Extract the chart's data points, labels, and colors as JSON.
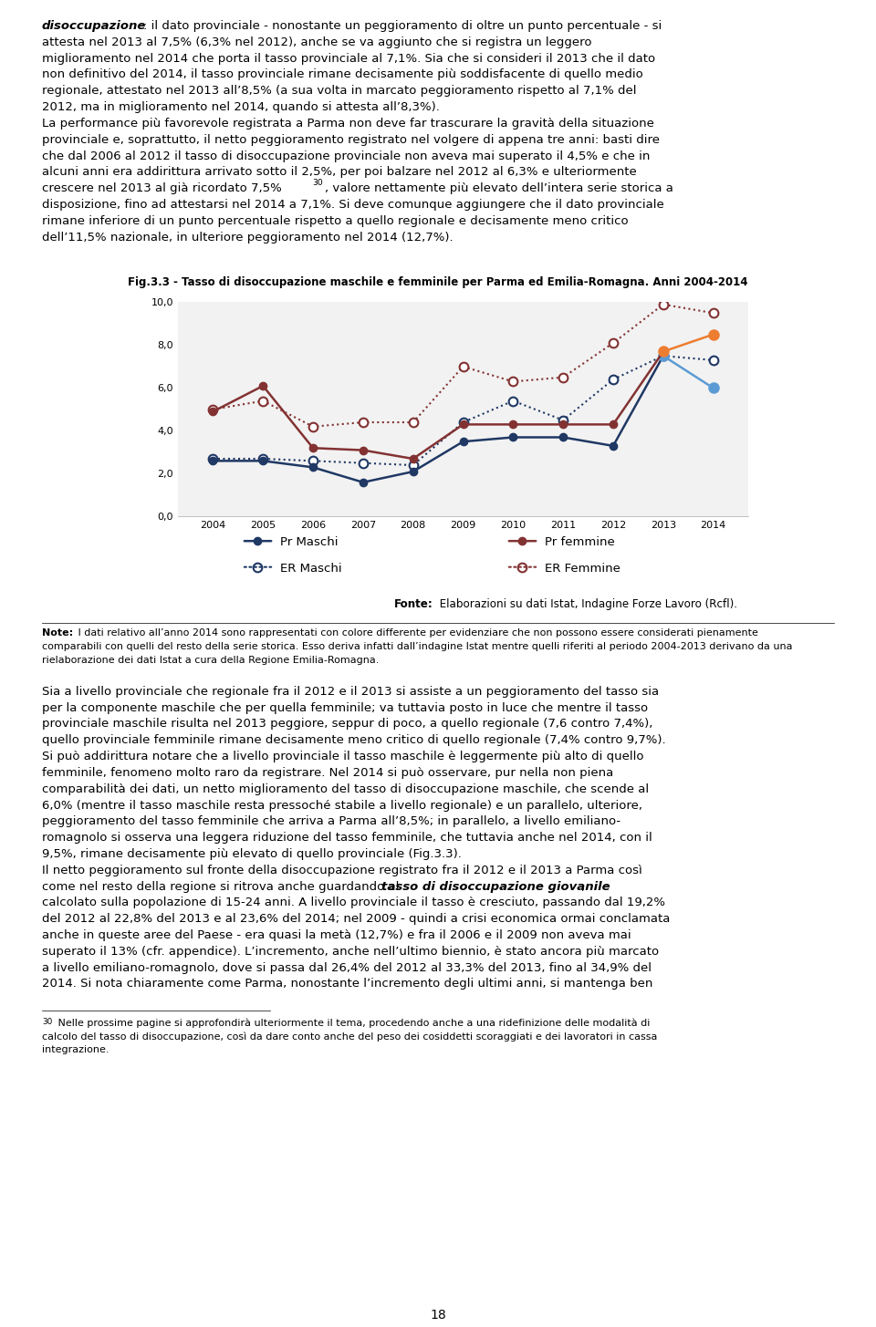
{
  "years": [
    2004,
    2005,
    2006,
    2007,
    2008,
    2009,
    2010,
    2011,
    2012,
    2013,
    2014
  ],
  "pr_maschi": [
    2.6,
    2.6,
    2.3,
    1.6,
    2.1,
    3.5,
    3.7,
    3.7,
    3.3,
    7.5,
    6.0
  ],
  "pr_femmine": [
    4.9,
    6.1,
    3.2,
    3.1,
    2.7,
    4.3,
    4.3,
    4.3,
    4.3,
    7.7,
    8.5
  ],
  "er_maschi": [
    2.7,
    2.7,
    2.6,
    2.5,
    2.4,
    4.4,
    5.4,
    4.5,
    6.4,
    7.5,
    7.3
  ],
  "er_femmine": [
    5.0,
    5.4,
    4.2,
    4.4,
    4.4,
    7.0,
    6.3,
    6.5,
    8.1,
    9.9,
    9.5
  ],
  "pr_maschi_color_last": "#5b9bd5",
  "pr_femmine_color_last": "#ed7d31",
  "pr_maschi_color": "#1f3864",
  "pr_femmine_color": "#833232",
  "er_maschi_color": "#1f3864",
  "er_femmine_color": "#833232",
  "ylim": [
    0.0,
    10.0
  ],
  "yticks": [
    0.0,
    2.0,
    4.0,
    6.0,
    8.0,
    10.0
  ],
  "ytick_labels": [
    "0,0",
    "2,0",
    "4,0",
    "6,0",
    "8,0",
    "10,0"
  ],
  "fig_title": "Fig.3.3 - Tasso di disoccupazione maschile e femminile per Parma ed Emilia-Romagna. Anni 2004-2014",
  "legend_pr_maschi": "Pr Maschi",
  "legend_pr_femmine": "Pr femmine",
  "legend_er_maschi": "ER Maschi",
  "legend_er_femmine": "ER Femmine",
  "page_number": "18",
  "text_fontsize": 9.5,
  "note_fontsize": 8.0,
  "chart_bg": "#f2f2f2"
}
